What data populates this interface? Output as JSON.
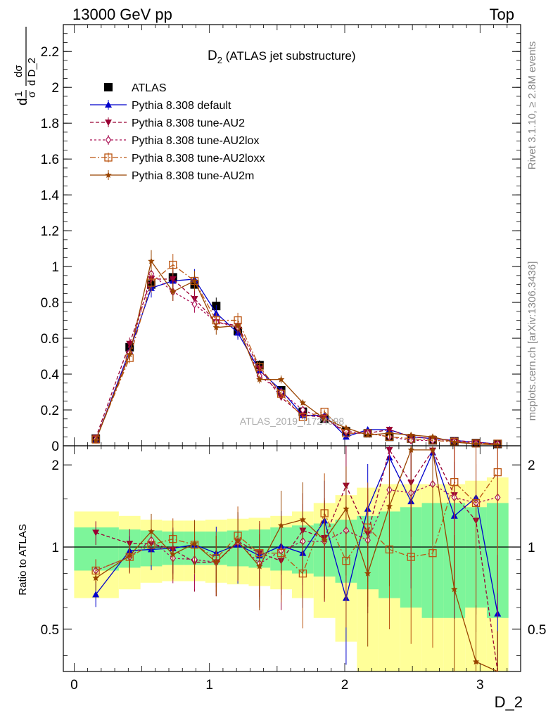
{
  "header": {
    "left": "13000 GeV pp",
    "right": "Top"
  },
  "side": {
    "rivet": "Rivet 3.1.10, ≥ 2.8M events",
    "mcplots": "mcplots.cern.ch [arXiv:1306.3436]"
  },
  "watermark": "ATLAS_2019_I1724098",
  "colors": {
    "data": "#000000",
    "default": "#0000cc",
    "au2": "#990033",
    "au2lox": "#aa1155",
    "au2loxx": "#bb5511",
    "au2m": "#994400",
    "band_green": "#7df59a",
    "band_yellow": "#ffff99"
  },
  "chart_data": [
    {
      "type": "line",
      "title": "D₂ (ATLAS jet substructure)",
      "title_main": "D",
      "title_sub": "2",
      "title_rest": " (ATLAS jet substructure)",
      "ylabel": "d¹/σ dσ/dD_2",
      "ylabel_parts": {
        "a": "d",
        "b": "1",
        "c": "σ",
        "d": "dσ",
        "e": "d D_2"
      },
      "xlabel": "D_2",
      "xlim": [
        -0.08,
        3.3
      ],
      "ylim": [
        0,
        2.35
      ],
      "yticks": [
        "0",
        "0.2",
        "0.4",
        "0.6",
        "0.8",
        "1",
        "1.2",
        "1.4",
        "1.6",
        "1.8",
        "2",
        "2.2"
      ],
      "legend_position": "top-left",
      "x": [
        0.16,
        0.41,
        0.57,
        0.73,
        0.89,
        1.05,
        1.21,
        1.37,
        1.53,
        1.69,
        1.85,
        2.01,
        2.17,
        2.33,
        2.49,
        2.65,
        2.81,
        2.97,
        3.13
      ],
      "series": [
        {
          "name": "ATLAS",
          "key": "data",
          "marker": "square",
          "values": [
            0.04,
            0.55,
            0.9,
            0.94,
            0.9,
            0.78,
            0.64,
            0.45,
            0.31,
            0.19,
            0.15,
            0.08,
            0.07,
            0.05,
            0.04,
            0.03,
            0.025,
            0.015,
            0.01
          ]
        },
        {
          "name": "Pythia 8.308 default",
          "key": "default",
          "marker": "triangle-up",
          "values": [
            0.03,
            0.53,
            0.88,
            0.92,
            0.93,
            0.74,
            0.63,
            0.42,
            0.31,
            0.17,
            0.17,
            0.05,
            0.09,
            0.09,
            0.05,
            0.04,
            0.03,
            0.02,
            0.01
          ]
        },
        {
          "name": "Pythia 8.308 tune-AU2",
          "key": "au2",
          "marker": "triangle-down",
          "values": [
            0.045,
            0.57,
            0.93,
            0.93,
            0.82,
            0.69,
            0.67,
            0.43,
            0.27,
            0.17,
            0.16,
            0.07,
            0.07,
            0.09,
            0.05,
            0.04,
            0.03,
            0.02,
            0.01
          ]
        },
        {
          "name": "Pythia 8.308 tune-AU2lox",
          "key": "au2lox",
          "marker": "diamond",
          "values": [
            0.035,
            0.52,
            0.96,
            0.86,
            0.79,
            0.69,
            0.66,
            0.39,
            0.3,
            0.2,
            0.15,
            0.08,
            0.07,
            0.05,
            0.03,
            0.03,
            0.025,
            0.013,
            0.01
          ]
        },
        {
          "name": "Pythia 8.308 tune-AU2loxx",
          "key": "au2loxx",
          "marker": "square-open",
          "values": [
            0.035,
            0.49,
            0.91,
            1.01,
            0.92,
            0.7,
            0.7,
            0.44,
            0.29,
            0.16,
            0.19,
            0.07,
            0.07,
            0.05,
            0.04,
            0.03,
            0.022,
            0.013,
            0.012
          ]
        },
        {
          "name": "Pythia 8.308 tune-AU2m",
          "key": "au2m",
          "marker": "star",
          "values": [
            0.03,
            0.51,
            1.03,
            0.86,
            0.92,
            0.66,
            0.67,
            0.37,
            0.37,
            0.24,
            0.15,
            0.1,
            0.06,
            0.07,
            0.06,
            0.05,
            0.02,
            0.01,
            0.005
          ]
        }
      ]
    },
    {
      "type": "line",
      "ylabel": "Ratio to ATLAS",
      "xlabel": "D_2",
      "xlim": [
        -0.08,
        3.3
      ],
      "ylim": [
        0.35,
        2.35
      ],
      "ytick_labels": [
        "0.5",
        "1",
        "2"
      ],
      "ytick_values": [
        0.5,
        1,
        2
      ],
      "xtick_labels": [
        "0",
        "1",
        "2",
        "3"
      ],
      "xtick_values": [
        0,
        1,
        2,
        3
      ],
      "reference_line": 1,
      "bands": {
        "bin_edges": [
          0.0,
          0.33,
          0.49,
          0.65,
          0.81,
          0.97,
          1.13,
          1.29,
          1.45,
          1.61,
          1.77,
          1.93,
          2.09,
          2.25,
          2.41,
          2.57,
          2.73,
          2.89,
          3.05,
          3.21
        ],
        "green_half_width": [
          0.18,
          0.16,
          0.15,
          0.14,
          0.14,
          0.14,
          0.15,
          0.16,
          0.18,
          0.2,
          0.22,
          0.26,
          0.3,
          0.35,
          0.4,
          0.45,
          0.45,
          0.4,
          0.45
        ],
        "yellow_half_width": [
          0.35,
          0.3,
          0.26,
          0.25,
          0.25,
          0.26,
          0.27,
          0.28,
          0.3,
          0.35,
          0.45,
          0.55,
          0.65,
          0.7,
          0.7,
          0.7,
          0.7,
          0.75,
          0.8
        ]
      },
      "series": [
        {
          "name": "Pythia 8.308 default",
          "key": "default",
          "values": [
            0.67,
            0.97,
            0.98,
            0.99,
            1.02,
            0.95,
            1.02,
            0.93,
            1.01,
            0.95,
            1.25,
            0.65,
            1.38,
            2.13,
            1.47,
            2.22,
            1.3,
            1.52,
            0.57
          ]
        },
        {
          "name": "Pythia 8.308 tune-AU2",
          "key": "au2",
          "values": [
            1.13,
            1.03,
            1.03,
            0.98,
            0.88,
            0.88,
            1.05,
            0.95,
            0.89,
            1.15,
            1.08,
            1.68,
            1.12,
            2.27,
            1.72,
            2.26,
            1.55,
            1.25,
            0.3
          ]
        },
        {
          "name": "Pythia 8.308 tune-AU2lox",
          "key": "au2lox",
          "values": [
            0.82,
            0.92,
            1.06,
            0.91,
            0.9,
            0.88,
            1.04,
            0.87,
            0.97,
            1.05,
            1.05,
            1.15,
            1.06,
            1.62,
            1.58,
            1.7,
            1.52,
            1.45,
            1.52
          ]
        },
        {
          "name": "Pythia 8.308 tune-AU2loxx",
          "key": "au2loxx",
          "values": [
            0.82,
            0.92,
            1.02,
            1.07,
            1.02,
            0.91,
            1.1,
            0.95,
            0.95,
            0.8,
            1.33,
            0.89,
            1.18,
            0.98,
            0.92,
            0.95,
            1.73,
            1.45,
            1.88
          ]
        },
        {
          "name": "Pythia 8.308 tune-AU2m",
          "key": "au2m",
          "values": [
            0.77,
            0.93,
            1.14,
            0.94,
            1.03,
            0.88,
            1.05,
            0.85,
            1.2,
            1.26,
            1.06,
            1.38,
            0.8,
            1.41,
            2.27,
            2.27,
            0.7,
            0.38,
            0.3
          ]
        }
      ]
    }
  ]
}
